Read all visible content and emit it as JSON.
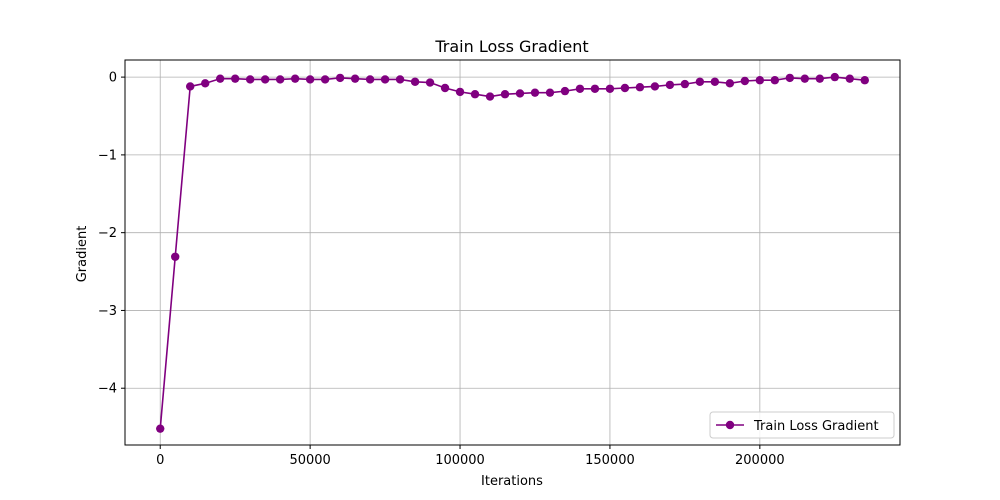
{
  "chart_data": {
    "type": "line",
    "title": "Train Loss Gradient",
    "xlabel": "Iterations",
    "ylabel": "Gradient",
    "xlim": [
      -11750,
      246750
    ],
    "ylim": [
      -4.73,
      0.22
    ],
    "xticks": [
      0,
      50000,
      100000,
      150000,
      200000
    ],
    "xtick_labels": [
      "0",
      "50000",
      "100000",
      "150000",
      "200000"
    ],
    "yticks": [
      0,
      -1,
      -2,
      -3,
      -4
    ],
    "ytick_labels": [
      "0",
      "−1",
      "−2",
      "−3",
      "−4"
    ],
    "grid": true,
    "legend_position": "lower-right",
    "series": [
      {
        "name": "Train Loss Gradient",
        "color": "#800080",
        "marker": "circle",
        "x": [
          0,
          5000,
          10000,
          15000,
          20000,
          25000,
          30000,
          35000,
          40000,
          45000,
          50000,
          55000,
          60000,
          65000,
          70000,
          75000,
          80000,
          85000,
          90000,
          95000,
          100000,
          105000,
          110000,
          115000,
          120000,
          125000,
          130000,
          135000,
          140000,
          145000,
          150000,
          155000,
          160000,
          165000,
          170000,
          175000,
          180000,
          185000,
          190000,
          195000,
          200000,
          205000,
          210000,
          215000,
          220000,
          225000,
          230000,
          235000
        ],
        "y": [
          -4.52,
          -2.31,
          -0.12,
          -0.08,
          -0.02,
          -0.02,
          -0.03,
          -0.03,
          -0.03,
          -0.02,
          -0.03,
          -0.03,
          -0.01,
          -0.02,
          -0.03,
          -0.03,
          -0.03,
          -0.06,
          -0.07,
          -0.14,
          -0.19,
          -0.22,
          -0.25,
          -0.22,
          -0.21,
          -0.2,
          -0.2,
          -0.18,
          -0.15,
          -0.15,
          -0.15,
          -0.14,
          -0.13,
          -0.12,
          -0.1,
          -0.09,
          -0.06,
          -0.06,
          -0.08,
          -0.05,
          -0.04,
          -0.04,
          -0.01,
          -0.02,
          -0.02,
          0.0,
          -0.02,
          -0.04
        ]
      }
    ]
  }
}
